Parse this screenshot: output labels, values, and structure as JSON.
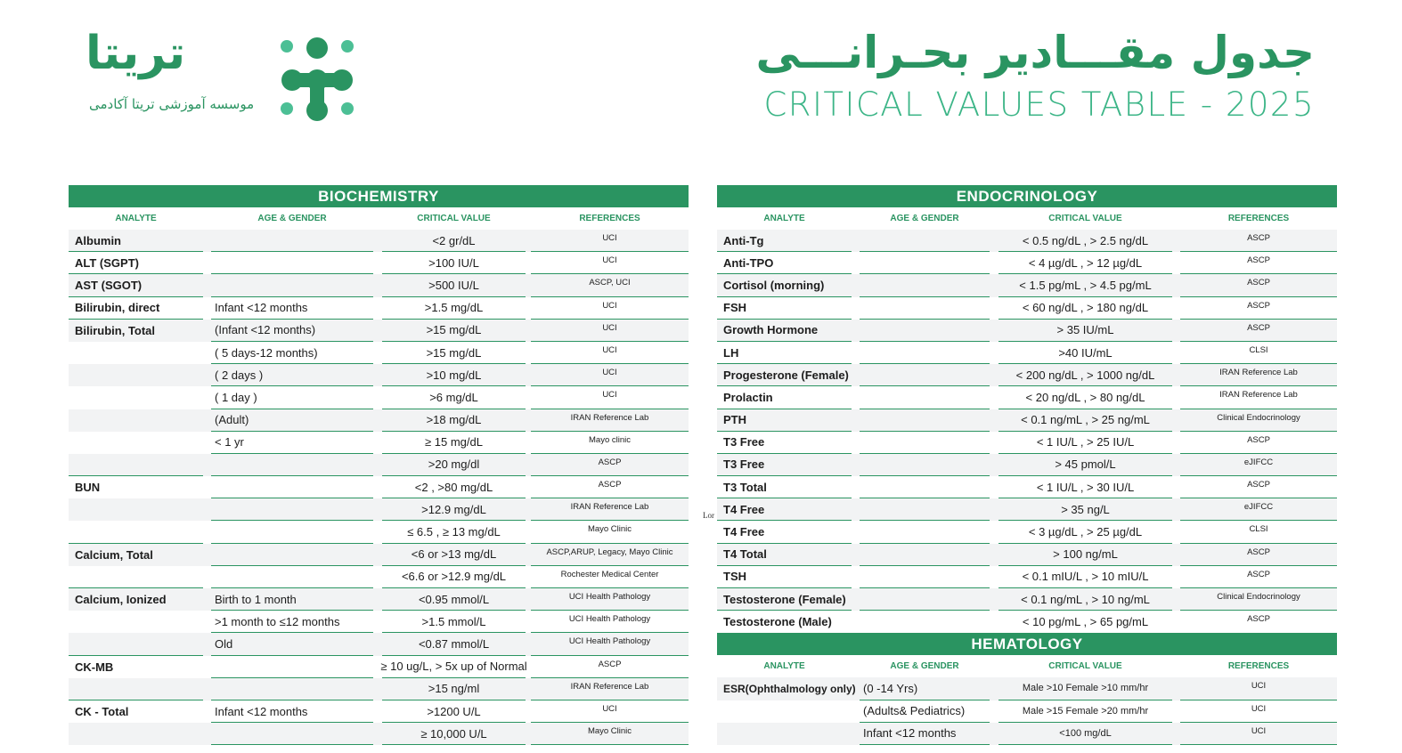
{
  "logo": {
    "wordmark": "تریتا",
    "subtitle": "موسسه آموزشی تریتا آکادمی"
  },
  "header": {
    "title_fa": "جدول مقـــادیر بحـرانـــی",
    "title_en": "CRITICAL VALUES TABLE - 2025"
  },
  "colors": {
    "brand_green": "#2a9461",
    "accent_green": "#3cb587",
    "row_shade": "#f2f3f4"
  },
  "columns": {
    "analyte": "ANALYTE",
    "age": "AGE & GENDER",
    "value": "CRITICAL VALUE",
    "ref": "REFERENCES"
  },
  "stray_text": "Lor",
  "biochemistry": {
    "title": "BIOCHEMISTRY",
    "rows": [
      [
        "Albumin",
        "",
        "<2 gr/dL",
        "UCI"
      ],
      [
        "ALT (SGPT)",
        "",
        ">100 IU/L",
        "UCI"
      ],
      [
        "AST (SGOT)",
        "",
        ">500 IU/L",
        "ASCP, UCI"
      ],
      [
        "Bilirubin, direct",
        "Infant <12 months",
        ">1.5 mg/dL",
        "UCI"
      ],
      [
        "Bilirubin, Total",
        "(Infant <12 months)",
        ">15 mg/dL",
        "UCI"
      ],
      [
        "",
        "( 5 days-12 months)",
        ">15 mg/dL",
        "UCI"
      ],
      [
        "",
        "( 2 days )",
        ">10 mg/dL",
        "UCI"
      ],
      [
        "",
        "( 1 day )",
        ">6 mg/dL",
        "UCI"
      ],
      [
        "",
        "(Adult)",
        ">18 mg/dL",
        "IRAN Reference Lab"
      ],
      [
        "",
        "< 1 yr",
        "≥ 15 mg/dL",
        "Mayo clinic"
      ],
      [
        "",
        "",
        ">20 mg/dl",
        "ASCP"
      ],
      [
        "BUN",
        "",
        "<2  ,  >80 mg/dL",
        "ASCP"
      ],
      [
        "",
        "",
        ">12.9 mg/dL",
        "IRAN Reference Lab"
      ],
      [
        "",
        "",
        "≤ 6.5  ,  ≥ 13 mg/dL",
        "Mayo Clinic"
      ],
      [
        "Calcium, Total",
        "",
        "<6   or  >13    mg/dL",
        "ASCP,ARUP, Legacy, Mayo Clinic"
      ],
      [
        "",
        "",
        "<6.6   or  >12.9   mg/dL",
        "Rochester Medical Center"
      ],
      [
        "Calcium, Ionized",
        "Birth to 1 month",
        "<0.95    mmol/L",
        "UCI Health Pathology"
      ],
      [
        "",
        ">1 month to ≤12 months",
        ">1.5      mmol/L",
        "UCI Health Pathology"
      ],
      [
        "",
        "Old",
        "<0.87    mmol/L",
        "UCI Health Pathology"
      ],
      [
        "CK-MB",
        "",
        "≥ 10 ug/L, > 5x up of Normal",
        "ASCP"
      ],
      [
        "",
        "",
        ">15 ng/ml",
        "IRAN Reference Lab"
      ],
      [
        "CK - Total",
        "Infant <12 months",
        ">1200 U/L",
        "UCI"
      ],
      [
        "",
        "",
        "≥ 10,000 U/L",
        "Mayo Clinic"
      ]
    ]
  },
  "endocrinology": {
    "title": "ENDOCRINOLOGY",
    "rows": [
      [
        "Anti-Tg",
        "",
        "< 0.5 ng/dL  ,  > 2.5 ng/dL",
        "ASCP"
      ],
      [
        "Anti-TPO",
        "",
        "< 4 µg/dL  ,  > 12 µg/dL",
        "ASCP"
      ],
      [
        "Cortisol (morning)",
        "",
        "< 1.5 pg/mL  ,  > 4.5 pg/mL",
        "ASCP"
      ],
      [
        "FSH",
        "",
        "< 60 ng/dL  ,  > 180 ng/dL",
        "ASCP"
      ],
      [
        "Growth Hormone",
        "",
        "> 35 IU/mL",
        "ASCP"
      ],
      [
        "LH",
        "",
        ">40 IU/mL",
        "CLSI"
      ],
      [
        "Progesterone (Female)",
        "",
        "< 200 ng/dL  ,  > 1000 ng/dL",
        "IRAN Reference Lab"
      ],
      [
        "Prolactin",
        "",
        "< 20 ng/dL  ,  > 80 ng/dL",
        "IRAN Reference Lab"
      ],
      [
        "PTH",
        "",
        "< 0.1 ng/mL  ,  >  25 ng/mL",
        "Clinical Endocrinology"
      ],
      [
        "T3 Free",
        "",
        "< 1 IU/L , > 25 IU/L",
        "ASCP"
      ],
      [
        "T3 Free",
        "",
        "> 45 pmol/L",
        "eJIFCC"
      ],
      [
        "T3 Total",
        "",
        "< 1 IU/L , > 30 IU/L",
        "ASCP"
      ],
      [
        "T4 Free",
        "",
        "> 35 ng/L",
        "eJIFCC"
      ],
      [
        "T4 Free",
        "",
        "< 3 µg/dL  , > 25 µg/dL",
        "CLSI"
      ],
      [
        "T4 Total",
        "",
        "> 100 ng/mL",
        "ASCP"
      ],
      [
        "TSH",
        "",
        "< 0.1 mIU/L  ,  > 10 mIU/L",
        "ASCP"
      ],
      [
        "Testosterone (Female)",
        "",
        "< 0.1 ng/mL  ,  > 10 ng/mL",
        "Clinical Endocrinology"
      ],
      [
        "Testosterone (Male)",
        "",
        "< 10 pg/mL  ,  > 65 pg/mL",
        "ASCP"
      ]
    ]
  },
  "hematology": {
    "title": "HEMATOLOGY",
    "rows": [
      [
        "ESR(Ophthalmology only)",
        "(0 -14 Yrs)",
        "Male >10  Female >10 mm/hr",
        "UCI"
      ],
      [
        "",
        "(Adults& Pediatrics)",
        "Male >15  Female >20 mm/hr",
        "UCI"
      ],
      [
        "",
        "Infant <12 months",
        "<100 mg/dL",
        "UCI"
      ]
    ]
  }
}
